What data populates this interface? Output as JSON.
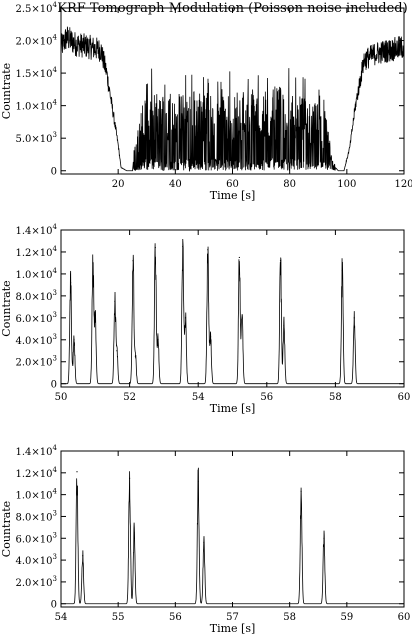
{
  "chart_data": [
    {
      "type": "line",
      "title": "KRF Tomograph Modulation (Poisson noise included)",
      "xlabel": "Time [s]",
      "ylabel": "Countrate",
      "xlim": [
        0,
        120
      ],
      "ylim": [
        -500,
        25000
      ],
      "x_ticks": [
        20,
        40,
        60,
        80,
        100,
        120
      ],
      "y_ticks": [
        {
          "value": 0,
          "label": "0"
        },
        {
          "value": 5000,
          "label": "5.0×10",
          "exp": "3"
        },
        {
          "value": 10000,
          "label": "1.0×10",
          "exp": "4"
        },
        {
          "value": 15000,
          "label": "1.5×10",
          "exp": "4"
        },
        {
          "value": 20000,
          "label": "2.0×10",
          "exp": "4"
        },
        {
          "value": 25000,
          "label": "2.5×10",
          "exp": "4"
        }
      ],
      "grid": false,
      "series": [
        {
          "x": [
            0,
            2,
            5,
            10,
            14,
            16,
            18,
            20,
            21,
            23,
            24,
            25,
            26,
            28,
            30,
            35,
            40,
            45,
            50,
            55,
            60,
            65,
            70,
            75,
            80,
            85,
            90,
            93,
            95,
            97,
            99,
            101,
            103,
            106,
            110,
            115,
            120
          ],
          "y": [
            19000,
            20500,
            19500,
            19000,
            18500,
            15000,
            9500,
            4000,
            500,
            0,
            0,
            0,
            3000,
            6000,
            7500,
            8000,
            7000,
            8000,
            7500,
            7000,
            7500,
            8000,
            7000,
            8000,
            7500,
            7000,
            6500,
            5000,
            1000,
            0,
            0,
            3500,
            10000,
            17000,
            18000,
            18500,
            19000
          ]
        }
      ]
    },
    {
      "type": "line",
      "title": "",
      "xlabel": "Time [s]",
      "ylabel": "Countrate",
      "xlim": [
        50,
        60
      ],
      "ylim": [
        -300,
        14000
      ],
      "x_ticks": [
        50,
        52,
        54,
        56,
        58,
        60
      ],
      "y_ticks": [
        {
          "value": 0,
          "label": "0"
        },
        {
          "value": 2000,
          "label": "2.0×10",
          "exp": "3"
        },
        {
          "value": 4000,
          "label": "4.0×10",
          "exp": "3"
        },
        {
          "value": 6000,
          "label": "6.0×10",
          "exp": "3"
        },
        {
          "value": 8000,
          "label": "8.0×10",
          "exp": "3"
        },
        {
          "value": 10000,
          "label": "1.0×10",
          "exp": "4"
        },
        {
          "value": 12000,
          "label": "1.2×10",
          "exp": "4"
        },
        {
          "value": 14000,
          "label": "1.4×10",
          "exp": "4"
        }
      ],
      "grid": false,
      "peaks": [
        {
          "x": 50.28,
          "y": 9200
        },
        {
          "x": 50.38,
          "y": 4000
        },
        {
          "x": 50.93,
          "y": 11000
        },
        {
          "x": 51.0,
          "y": 6000
        },
        {
          "x": 51.57,
          "y": 7500
        },
        {
          "x": 51.63,
          "y": 3000
        },
        {
          "x": 52.1,
          "y": 11200
        },
        {
          "x": 52.17,
          "y": 2500
        },
        {
          "x": 52.75,
          "y": 12400
        },
        {
          "x": 52.83,
          "y": 4000
        },
        {
          "x": 53.55,
          "y": 12500
        },
        {
          "x": 53.63,
          "y": 6000
        },
        {
          "x": 54.28,
          "y": 12200
        },
        {
          "x": 54.36,
          "y": 4300
        },
        {
          "x": 55.2,
          "y": 11500
        },
        {
          "x": 55.28,
          "y": 6000
        },
        {
          "x": 56.4,
          "y": 11200
        },
        {
          "x": 56.5,
          "y": 5300
        },
        {
          "x": 58.2,
          "y": 10300
        },
        {
          "x": 58.55,
          "y": 6000
        }
      ]
    },
    {
      "type": "line",
      "title": "",
      "xlabel": "Time [s]",
      "ylabel": "Countrate",
      "xlim": [
        54,
        60
      ],
      "ylim": [
        -300,
        14000
      ],
      "x_ticks": [
        54,
        55,
        56,
        57,
        58,
        59,
        60
      ],
      "y_ticks": [
        {
          "value": 0,
          "label": "0"
        },
        {
          "value": 2000,
          "label": "2.0×10",
          "exp": "3"
        },
        {
          "value": 4000,
          "label": "4.0×10",
          "exp": "3"
        },
        {
          "value": 6000,
          "label": "6.0×10",
          "exp": "3"
        },
        {
          "value": 8000,
          "label": "8.0×10",
          "exp": "3"
        },
        {
          "value": 10000,
          "label": "1.0×10",
          "exp": "4"
        },
        {
          "value": 12000,
          "label": "1.2×10",
          "exp": "4"
        },
        {
          "value": 14000,
          "label": "1.4×10",
          "exp": "4"
        }
      ],
      "grid": false,
      "peaks": [
        {
          "x": 54.28,
          "y": 12100
        },
        {
          "x": 54.38,
          "y": 4400
        },
        {
          "x": 55.2,
          "y": 11500
        },
        {
          "x": 55.28,
          "y": 6500
        },
        {
          "x": 56.4,
          "y": 11200
        },
        {
          "x": 56.5,
          "y": 5600
        },
        {
          "x": 58.2,
          "y": 10300
        },
        {
          "x": 58.6,
          "y": 6000
        }
      ]
    }
  ]
}
